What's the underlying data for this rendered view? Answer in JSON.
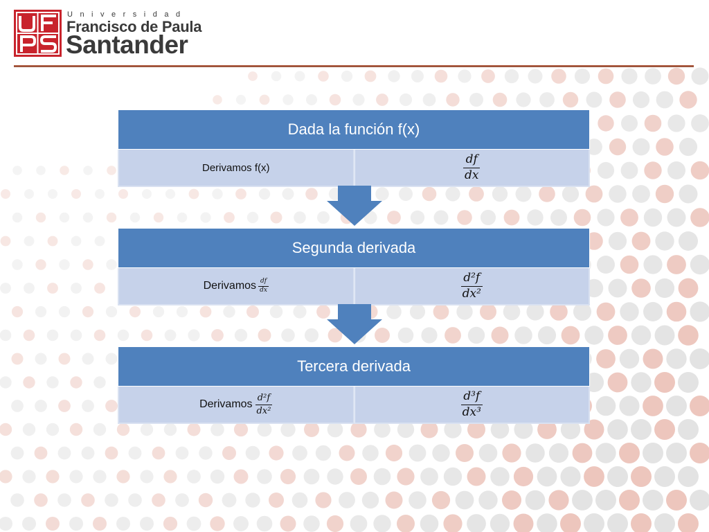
{
  "header": {
    "logo_letters": "UFPS",
    "university_label": "Universidad",
    "name_line1": "Francisco de Paula",
    "name_line2": "Santander"
  },
  "colors": {
    "accent_red": "#c8232c",
    "header_blue": "#4f81bd",
    "cell_blue": "#c6d2ea",
    "rule_brown": "#a35a40"
  },
  "blocks": [
    {
      "title": "Dada la función f(x)",
      "left_text": "Derivamos f(x)",
      "right_num": "df",
      "right_den": "dx"
    },
    {
      "title": "Segunda derivada",
      "left_text": "Derivamos",
      "left_num": "df",
      "left_den": "dx",
      "right_num": "d²f",
      "right_den": "dx²"
    },
    {
      "title": "Tercera derivada",
      "left_text": "Derivamos",
      "left_num": "d²f",
      "left_den": "dx²",
      "right_num": "d³f",
      "right_den": "dx³"
    }
  ]
}
